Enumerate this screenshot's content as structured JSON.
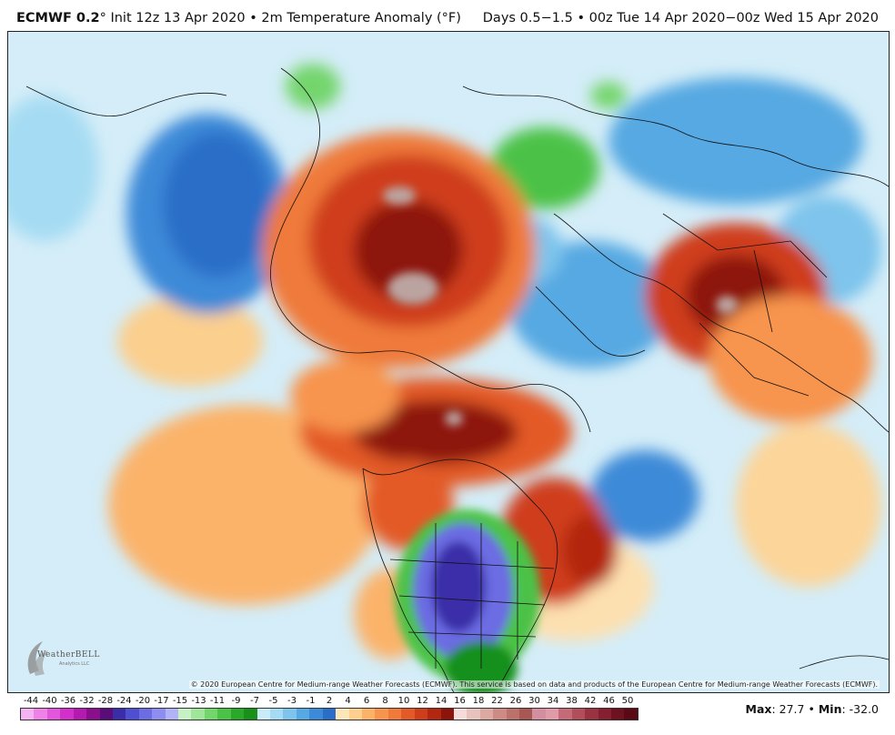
{
  "header": {
    "model": "ECMWF 0.2",
    "degree": "°",
    "init": "Init 12z 13 Apr 2020",
    "bullet": "•",
    "product": "2m Temperature Anomaly (°F)",
    "valid": "Days 0.5−1.5 • 00z Tue 14 Apr 2020−00z Wed 15 Apr 2020"
  },
  "copyright": "© 2020 European Centre for Medium-range Weather Forecasts (ECMWF). This service is based on data and products of the European Centre for Medium-range Weather Forecasts (ECMWF).",
  "logo": {
    "text": "WeatherBELL",
    "sub": "Analytics LLC"
  },
  "scale": {
    "labels": [
      "-44",
      "-40",
      "-36",
      "-32",
      "-28",
      "-24",
      "-20",
      "-17",
      "-15",
      "-13",
      "-11",
      "-9",
      "-7",
      "-5",
      "-3",
      "-1",
      "2",
      "4",
      "6",
      "8",
      "10",
      "12",
      "14",
      "16",
      "18",
      "22",
      "26",
      "30",
      "34",
      "38",
      "42",
      "46",
      "50"
    ],
    "colors": [
      "#f6b3f2",
      "#ee82e8",
      "#e257dc",
      "#d22fcb",
      "#b51ab0",
      "#8a0f8a",
      "#5a0c7a",
      "#3b2da8",
      "#4f4fd1",
      "#6c6ce3",
      "#8d8ef0",
      "#b2b3f7",
      "#c7f2c4",
      "#9fe69a",
      "#74d56d",
      "#4cc246",
      "#2aa82a",
      "#18901a",
      "#c8ecf8",
      "#a6dcf3",
      "#7ec4ec",
      "#56a9e2",
      "#3c8ad8",
      "#2a6ec8",
      "#fde6b8",
      "#fdd090",
      "#fbb36a",
      "#f7944e",
      "#ef7a3a",
      "#e35a28",
      "#cf3e1a",
      "#b3260f",
      "#8d140a",
      "#f3dcd9",
      "#e8c3be",
      "#dba8a2",
      "#cc8c85",
      "#bb726b",
      "#a85853",
      "#d38fa0",
      "#e09aa8",
      "#c46a78",
      "#b04e5c",
      "#9a3242",
      "#84202f",
      "#6e1220",
      "#5a0a14"
    ],
    "max_label": "Max",
    "max_value": "27.7",
    "min_label": "Min",
    "min_value": "-32.0",
    "sep": "•"
  }
}
